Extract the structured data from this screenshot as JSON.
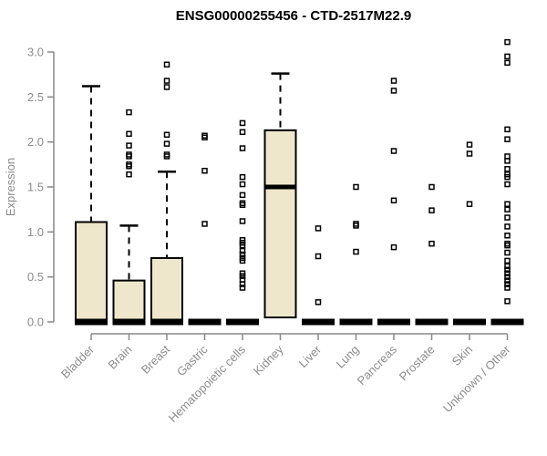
{
  "chart_data": {
    "type": "boxplot",
    "title": "ENSG00000255456 - CTD-2517M22.9",
    "xlabel": "",
    "ylabel": "Expression",
    "ylim": [
      0.0,
      3.0
    ],
    "grid": false,
    "legend": false,
    "yticks": [
      {
        "value": 0.0,
        "label": "0.0"
      },
      {
        "value": 0.5,
        "label": "0.5"
      },
      {
        "value": 1.0,
        "label": "1.0"
      },
      {
        "value": 1.5,
        "label": "1.5"
      },
      {
        "value": 2.0,
        "label": "2.0"
      },
      {
        "value": 2.5,
        "label": "2.5"
      },
      {
        "value": 3.0,
        "label": "3.0"
      }
    ],
    "categories": [
      "Bladder",
      "Brain",
      "Breast",
      "Gastric",
      "Hematopoietic cells",
      "Kidney",
      "Liver",
      "Lung",
      "Pancreas",
      "Prostate",
      "Skin",
      "Unknown / Other"
    ],
    "boxes": [
      {
        "category": "Bladder",
        "q1": 0.0,
        "median": 0.0,
        "q3": 1.11,
        "whisker_low": 0.0,
        "whisker_high": 2.62,
        "outliers": []
      },
      {
        "category": "Brain",
        "q1": 0.0,
        "median": 0.0,
        "q3": 0.46,
        "whisker_low": 0.0,
        "whisker_high": 1.07,
        "outliers": [
          2.33,
          2.09,
          1.96,
          1.86,
          1.84,
          1.75,
          1.73,
          1.64
        ]
      },
      {
        "category": "Breast",
        "q1": 0.0,
        "median": 0.0,
        "q3": 0.71,
        "whisker_low": 0.0,
        "whisker_high": 1.67,
        "outliers": [
          2.86,
          2.68,
          2.61,
          2.08,
          1.98,
          1.86,
          1.84
        ]
      },
      {
        "category": "Gastric",
        "q1": 0.0,
        "median": 0.0,
        "q3": 0.0,
        "whisker_low": 0.0,
        "whisker_high": 0.0,
        "outliers": [
          2.07,
          2.05,
          1.68,
          1.09
        ]
      },
      {
        "category": "Hematopoietic cells",
        "q1": 0.0,
        "median": 0.0,
        "q3": 0.0,
        "whisker_low": 0.0,
        "whisker_high": 0.0,
        "outliers": [
          2.21,
          2.11,
          1.93,
          1.61,
          1.53,
          1.41,
          1.32,
          1.3,
          1.12,
          0.91,
          0.88,
          0.85,
          0.79,
          0.75,
          0.71,
          0.68,
          0.54,
          0.51,
          0.47,
          0.42,
          0.38
        ]
      },
      {
        "category": "Kidney",
        "q1": 0.05,
        "median": 1.5,
        "q3": 2.13,
        "whisker_low": 0.05,
        "whisker_high": 2.76,
        "outliers": []
      },
      {
        "category": "Liver",
        "q1": 0.0,
        "median": 0.0,
        "q3": 0.0,
        "whisker_low": 0.0,
        "whisker_high": 0.0,
        "outliers": [
          1.04,
          0.73,
          0.22
        ]
      },
      {
        "category": "Lung",
        "q1": 0.0,
        "median": 0.0,
        "q3": 0.0,
        "whisker_low": 0.0,
        "whisker_high": 0.0,
        "outliers": [
          1.5,
          1.09,
          1.07,
          0.78
        ]
      },
      {
        "category": "Pancreas",
        "q1": 0.0,
        "median": 0.0,
        "q3": 0.0,
        "whisker_low": 0.0,
        "whisker_high": 0.0,
        "outliers": [
          2.68,
          2.57,
          1.9,
          1.35,
          0.83
        ]
      },
      {
        "category": "Prostate",
        "q1": 0.0,
        "median": 0.0,
        "q3": 0.0,
        "whisker_low": 0.0,
        "whisker_high": 0.0,
        "outliers": [
          1.5,
          1.24,
          0.87
        ]
      },
      {
        "category": "Skin",
        "q1": 0.0,
        "median": 0.0,
        "q3": 0.0,
        "whisker_low": 0.0,
        "whisker_high": 0.0,
        "outliers": [
          1.97,
          1.87,
          1.31
        ]
      },
      {
        "category": "Unknown / Other",
        "q1": 0.0,
        "median": 0.0,
        "q3": 0.0,
        "whisker_low": 0.0,
        "whisker_high": 0.0,
        "outliers": [
          3.11,
          2.95,
          2.88,
          2.14,
          2.03,
          1.84,
          1.79,
          1.7,
          1.64,
          1.61,
          1.53,
          1.31,
          1.25,
          1.16,
          1.06,
          0.96,
          0.87,
          0.85,
          0.77,
          0.68,
          0.62,
          0.58,
          0.54,
          0.5,
          0.46,
          0.42,
          0.38,
          0.23
        ]
      }
    ],
    "colors": {
      "box_fill": "#EFE7CB",
      "box_border": "#000000",
      "median": "#000000",
      "outlier": "#000000",
      "axis_line": "#888888",
      "axis_text": "#8c8c8c",
      "title": "#000000"
    }
  }
}
